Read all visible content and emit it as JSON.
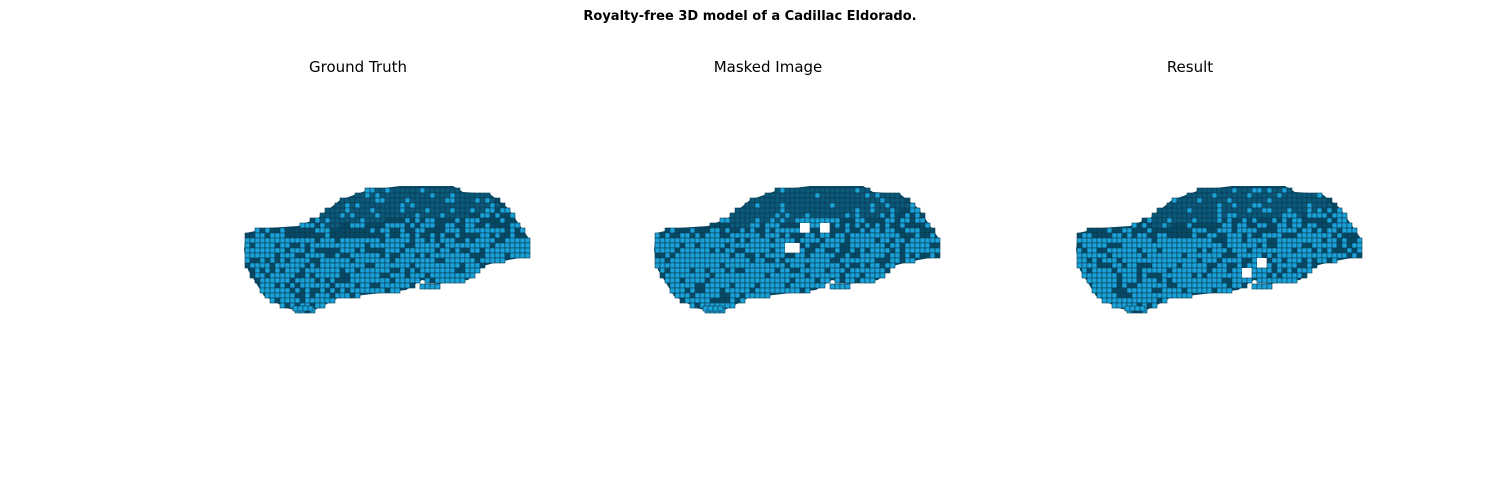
{
  "figure": {
    "title": "Royalty-free 3D model of a Cadillac Eldorado."
  },
  "panels": [
    {
      "title": "Ground Truth",
      "holes": 0
    },
    {
      "title": "Masked Image",
      "holes": 3
    },
    {
      "title": "Result",
      "holes": 2
    }
  ],
  "colors": {
    "voxel_face": "#1aa3d9",
    "voxel_dark": "#064a66",
    "voxel_edge": "#0a3b52",
    "voxel_top": "#0b5a7a"
  }
}
